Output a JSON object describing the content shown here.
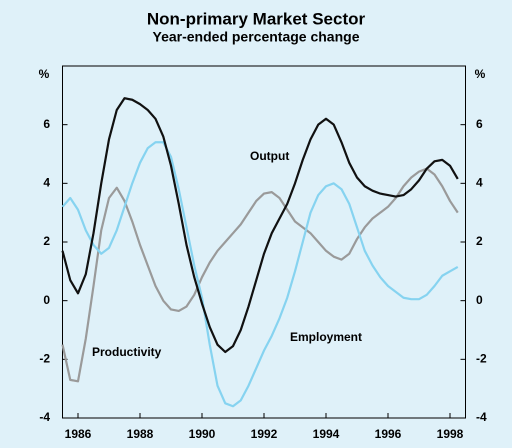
{
  "chart_data": {
    "type": "line",
    "title": "Non-primary Market Sector",
    "subtitle": "Year-ended percentage change",
    "y_label": "%",
    "x": [
      1985.5,
      1985.75,
      1986,
      1986.25,
      1986.5,
      1986.75,
      1987,
      1987.25,
      1987.5,
      1987.75,
      1988,
      1988.25,
      1988.5,
      1988.75,
      1989,
      1989.25,
      1989.5,
      1989.75,
      1990,
      1990.25,
      1990.5,
      1990.75,
      1991,
      1991.25,
      1991.5,
      1991.75,
      1992,
      1992.25,
      1992.5,
      1992.75,
      1993,
      1993.25,
      1993.5,
      1993.75,
      1994,
      1994.25,
      1994.5,
      1994.75,
      1995,
      1995.25,
      1995.5,
      1995.75,
      1996,
      1996.25,
      1996.5,
      1996.75,
      1997,
      1997.25,
      1997.5,
      1997.75,
      1998,
      1998.25
    ],
    "series": [
      {
        "name": "Output",
        "color": "#111111",
        "values": [
          1.7,
          0.7,
          0.25,
          0.9,
          2.3,
          4.0,
          5.5,
          6.5,
          6.9,
          6.85,
          6.7,
          6.5,
          6.2,
          5.6,
          4.6,
          3.3,
          1.9,
          0.8,
          -0.1,
          -0.9,
          -1.5,
          -1.75,
          -1.55,
          -1.0,
          -0.2,
          0.7,
          1.6,
          2.3,
          2.8,
          3.3,
          4.0,
          4.8,
          5.5,
          6.0,
          6.2,
          6.0,
          5.4,
          4.7,
          4.2,
          3.9,
          3.75,
          3.65,
          3.6,
          3.55,
          3.6,
          3.8,
          4.1,
          4.5,
          4.75,
          4.8,
          4.6,
          4.15
        ]
      },
      {
        "name": "Employment",
        "color": "#86d3f0",
        "values": [
          3.2,
          3.5,
          3.1,
          2.4,
          1.9,
          1.6,
          1.8,
          2.4,
          3.2,
          4.0,
          4.7,
          5.2,
          5.4,
          5.4,
          4.9,
          3.8,
          2.5,
          1.2,
          0.1,
          -1.5,
          -2.9,
          -3.5,
          -3.6,
          -3.4,
          -2.9,
          -2.3,
          -1.7,
          -1.2,
          -0.6,
          0.1,
          1.0,
          2.0,
          3.0,
          3.6,
          3.9,
          4.0,
          3.8,
          3.3,
          2.5,
          1.7,
          1.2,
          0.8,
          0.5,
          0.3,
          0.1,
          0.05,
          0.05,
          0.2,
          0.5,
          0.85,
          1.0,
          1.15
        ]
      },
      {
        "name": "Productivity",
        "color": "#9a9a9a",
        "values": [
          -1.5,
          -2.7,
          -2.75,
          -1.3,
          0.5,
          2.4,
          3.5,
          3.85,
          3.4,
          2.7,
          1.9,
          1.2,
          0.5,
          0.0,
          -0.3,
          -0.35,
          -0.2,
          0.2,
          0.8,
          1.3,
          1.7,
          2.0,
          2.3,
          2.6,
          3.0,
          3.4,
          3.65,
          3.7,
          3.5,
          3.1,
          2.7,
          2.5,
          2.3,
          2.0,
          1.7,
          1.5,
          1.4,
          1.6,
          2.1,
          2.5,
          2.8,
          3.0,
          3.2,
          3.5,
          3.9,
          4.2,
          4.4,
          4.5,
          4.3,
          3.9,
          3.4,
          3.0
        ]
      }
    ],
    "xlim": [
      1985.5,
      1998.5
    ],
    "xticks": [
      1986,
      1988,
      1990,
      1992,
      1994,
      1996,
      1998
    ],
    "ylim": [
      -4,
      8
    ],
    "yticks": [
      -4,
      -2,
      0,
      2,
      4,
      6
    ],
    "grid": false
  }
}
